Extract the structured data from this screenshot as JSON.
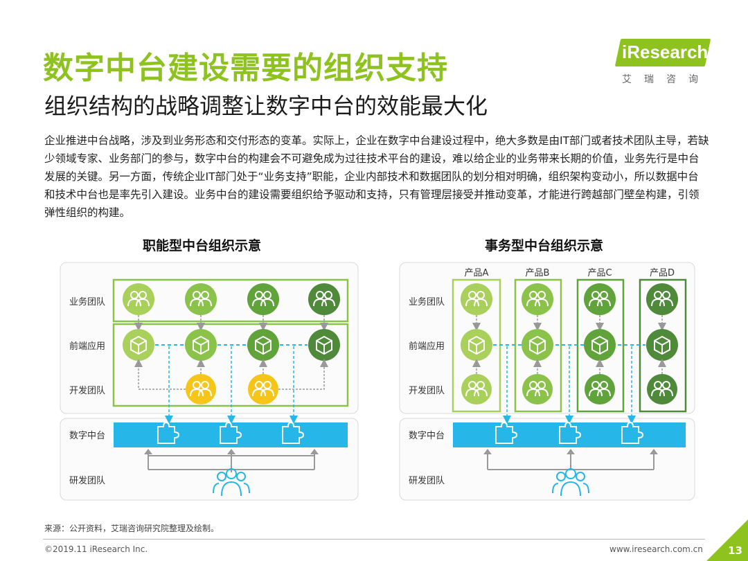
{
  "header": {
    "title": "数字中台建设需要的组织支持",
    "subtitle": "组织结构的战略调整让数字中台的效能最大化"
  },
  "logo": {
    "brand": "iResearch",
    "chinese": "艾瑞咨询"
  },
  "body_text": "企业推进中台战略，涉及到业务形态和交付形态的变革。实际上，企业在数字中台建设过程中，绝大多数是由IT部门或者技术团队主导，若缺少领域专家、业务部门的参与，数字中台的构建会不可避免成为过往技术平台的建设，难以给企业的业务带来长期的价值，业务先行是中台发展的关键。另一方面，传统企业IT部门处于“业务支持”职能，企业内部技术和数据团队的划分相对明确，组织架构变动小，所以数据中台和技术中台也是率先引入建设。业务中台的建设需要组织给予驱动和支持，只有管理层接受并推动变革，才能进行跨越部门壁垒构建，引领弹性组织的构建。",
  "diagrams": {
    "left": {
      "title": "职能型中台组织示意",
      "rows": [
        "业务团队",
        "前端应用",
        "开发团队",
        "数字中台",
        "研发团队"
      ]
    },
    "right": {
      "title": "事务型中台组织示意",
      "products": [
        "产品A",
        "产品B",
        "产品C",
        "产品D"
      ],
      "rows": [
        "业务团队",
        "前端应用",
        "开发团队",
        "数字中台",
        "研发团队"
      ]
    }
  },
  "colors": {
    "green1": "#a9d05a",
    "green2": "#8bc34a",
    "green3": "#5fa33a",
    "green4": "#4e8a3a",
    "yellow": "#f6c519",
    "platform": "#26b6e8",
    "brand": "#8dc21f"
  },
  "footer": {
    "source": "来源：公开资料，艾瑞咨询研究院整理及绘制。",
    "copyright": "©2019.11 iResearch Inc.",
    "website": "www.iresearch.com.cn",
    "page": "13"
  }
}
